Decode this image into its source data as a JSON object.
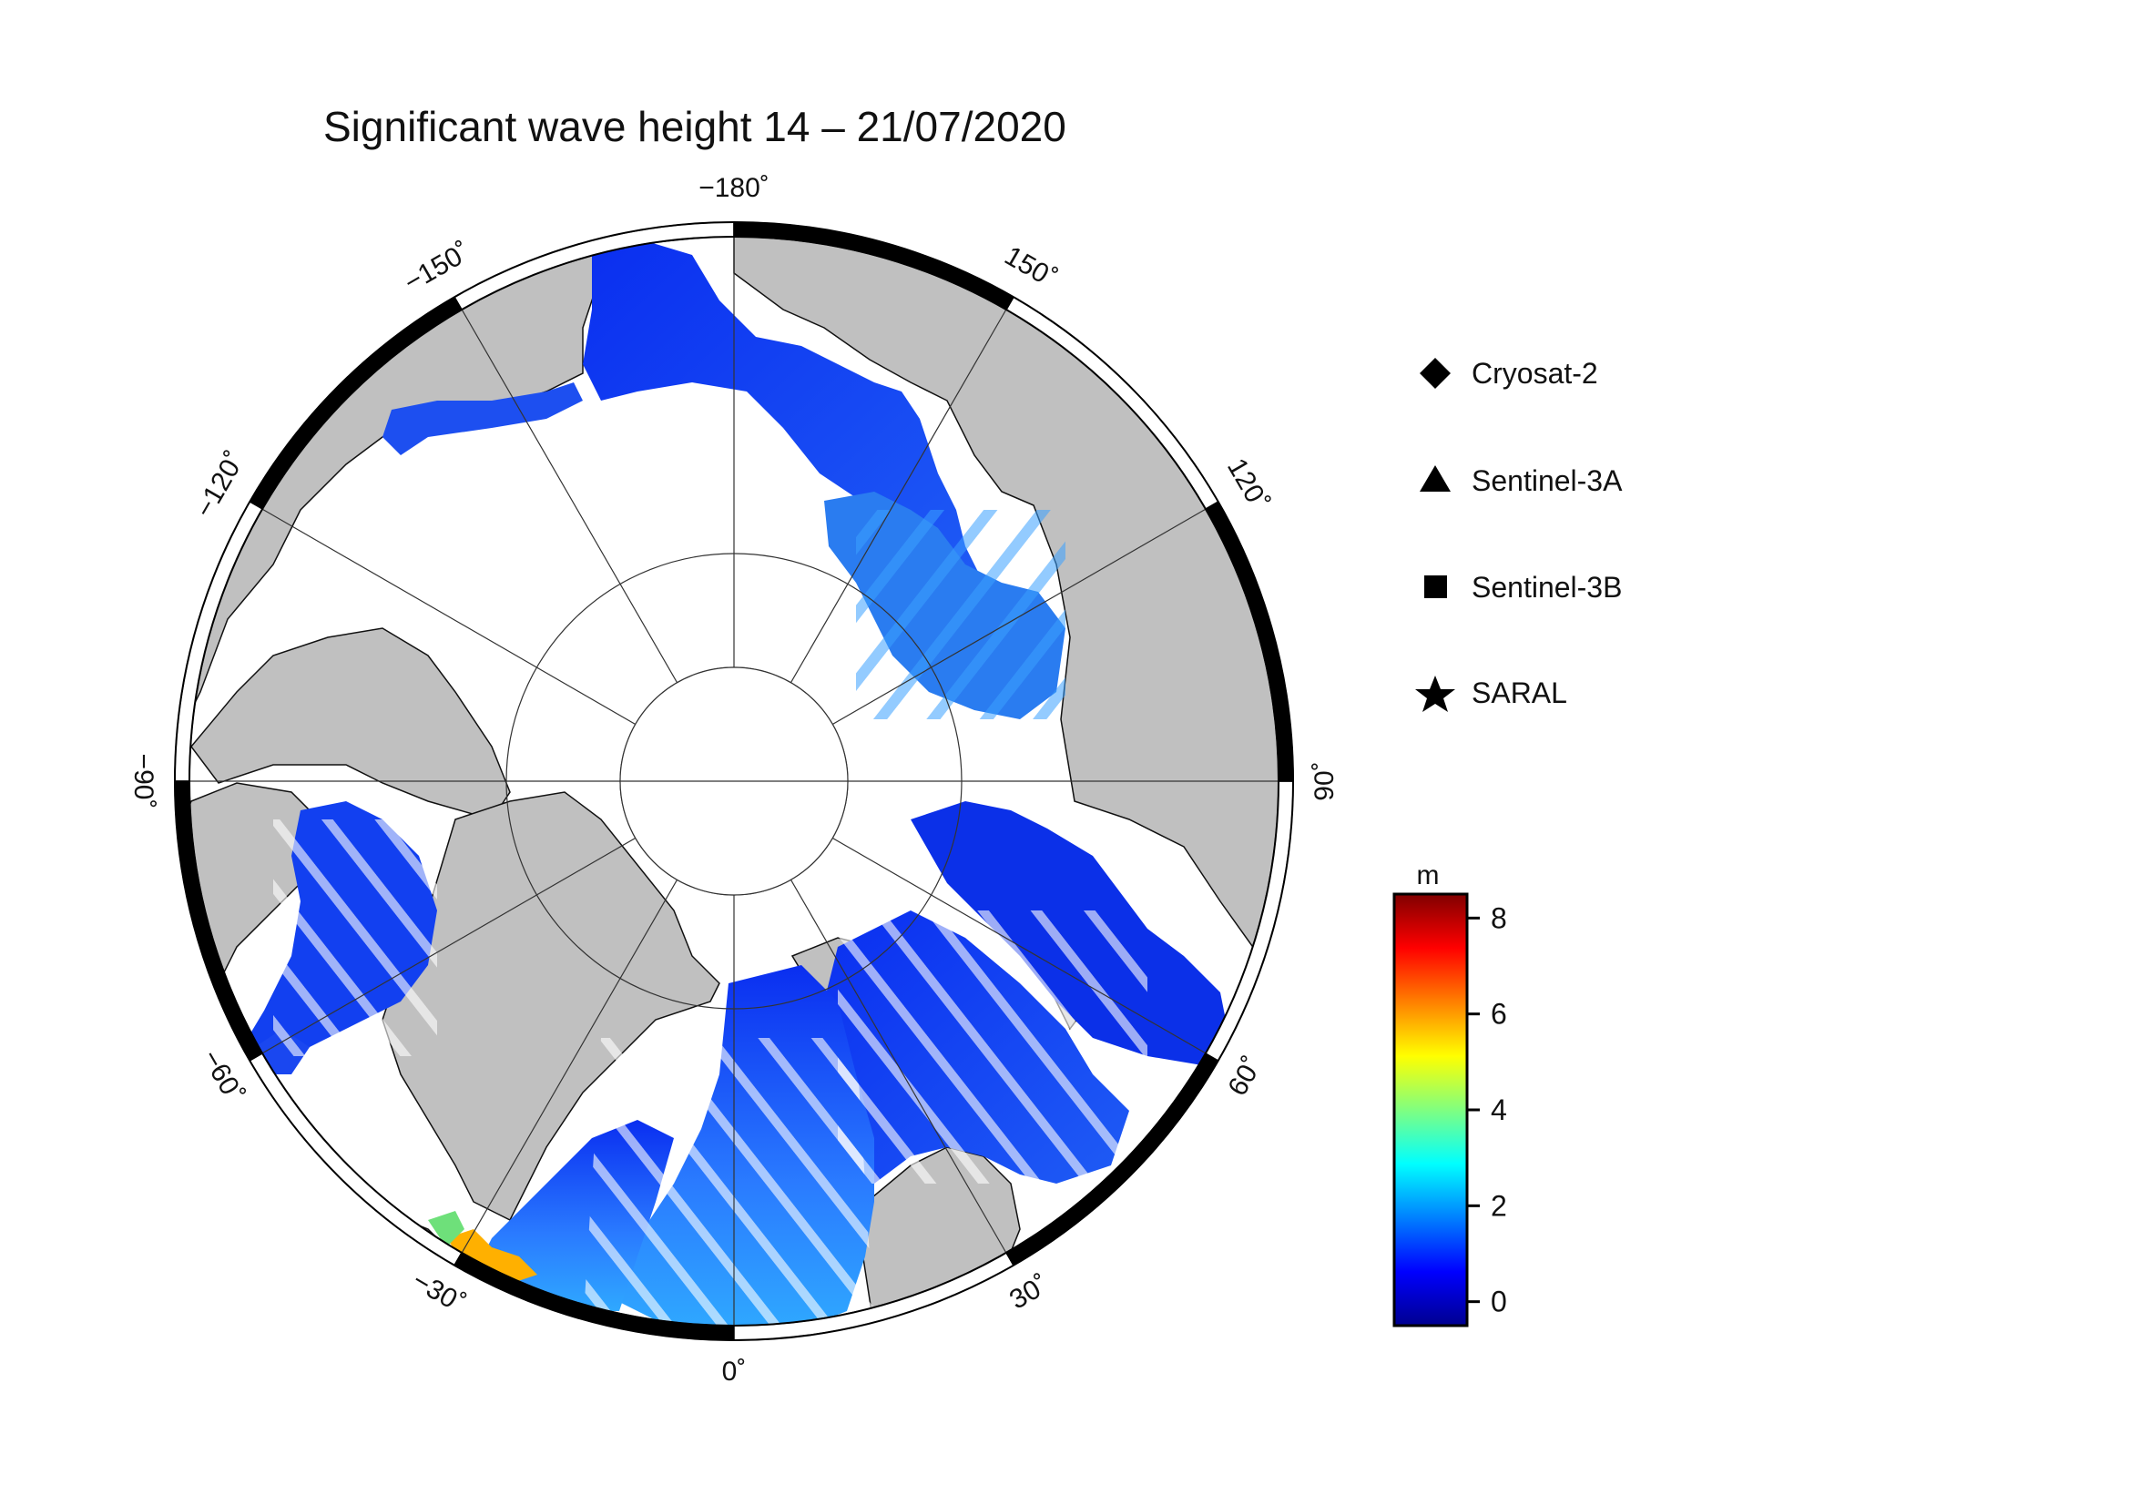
{
  "title": "Significant wave height 14 – 21/07/2020",
  "map": {
    "projection": "north polar stereographic",
    "longitude_labels": [
      {
        "lon": -180,
        "text": "−180˚"
      },
      {
        "lon": 150,
        "text": "150˚"
      },
      {
        "lon": 120,
        "text": "120˚"
      },
      {
        "lon": 90,
        "text": "90˚"
      },
      {
        "lon": 60,
        "text": "60˚"
      },
      {
        "lon": 30,
        "text": "30˚"
      },
      {
        "lon": 0,
        "text": "0˚"
      },
      {
        "lon": -30,
        "text": "−30˚"
      },
      {
        "lon": -60,
        "text": "−60˚"
      },
      {
        "lon": -90,
        "text": "−90˚"
      },
      {
        "lon": -120,
        "text": "−120˚"
      },
      {
        "lon": -150,
        "text": "−150˚"
      }
    ],
    "colors": {
      "land": "#c0c0c0",
      "sea_ice": "#ffffff",
      "grid": "#000000",
      "low_wave": "#1a3ff0",
      "high_wave": "#ff8000"
    }
  },
  "legend": {
    "items": [
      {
        "label": "Cryosat-2",
        "icon": "diamond-icon"
      },
      {
        "label": "Sentinel-3A",
        "icon": "triangle-icon"
      },
      {
        "label": "Sentinel-3B",
        "icon": "square-icon"
      },
      {
        "label": "SARAL",
        "icon": "star-icon"
      }
    ]
  },
  "colorbar": {
    "unit": "m",
    "ticks": [
      "0",
      "2",
      "4",
      "6",
      "8"
    ],
    "range": [
      -0.5,
      8.5
    ],
    "colormap": [
      "#00008f",
      "#0000ff",
      "#0080ff",
      "#00ffff",
      "#80ff80",
      "#ffff00",
      "#ff8000",
      "#ff0000",
      "#800000"
    ]
  }
}
